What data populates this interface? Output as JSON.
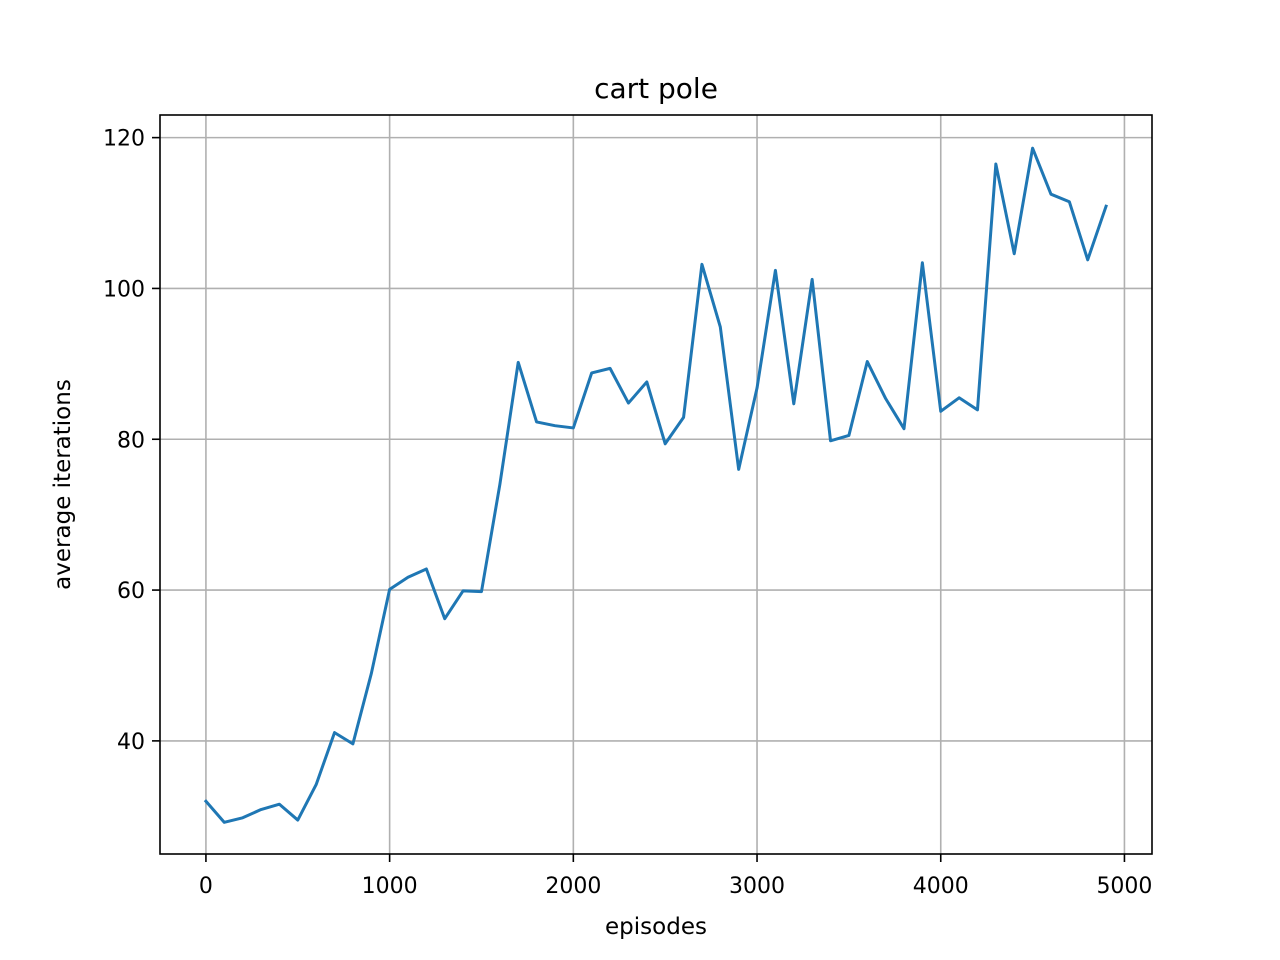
{
  "chart_data": {
    "type": "line",
    "title": "cart pole",
    "xlabel": "episodes",
    "ylabel": "average iterations",
    "xlim": [
      -250,
      5150
    ],
    "ylim": [
      25,
      123
    ],
    "x_ticks": [
      0,
      1000,
      2000,
      3000,
      4000,
      5000
    ],
    "y_ticks": [
      40,
      60,
      80,
      100,
      120
    ],
    "grid": true,
    "series": [
      {
        "color": "#1f77b4",
        "x": [
          0,
          100,
          200,
          300,
          400,
          500,
          600,
          700,
          800,
          900,
          1000,
          1100,
          1200,
          1300,
          1400,
          1500,
          1600,
          1700,
          1800,
          1900,
          2000,
          2100,
          2200,
          2300,
          2400,
          2500,
          2600,
          2700,
          2800,
          2900,
          3000,
          3100,
          3200,
          3300,
          3400,
          3500,
          3600,
          3700,
          3800,
          3900,
          4000,
          4100,
          4200,
          4300,
          4400,
          4500,
          4600,
          4700,
          4800,
          4900
        ],
        "y": [
          32.0,
          29.2,
          29.8,
          30.9,
          31.6,
          29.5,
          34.2,
          41.1,
          39.6,
          48.9,
          60.1,
          61.7,
          62.8,
          56.2,
          59.9,
          59.8,
          74.0,
          90.2,
          82.3,
          81.8,
          81.5,
          88.8,
          89.4,
          84.8,
          87.6,
          79.4,
          82.9,
          103.2,
          94.9,
          76.0,
          86.8,
          102.4,
          84.7,
          101.2,
          79.8,
          80.5,
          90.3,
          85.4,
          81.4,
          103.4,
          83.7,
          85.5,
          83.9,
          116.5,
          104.6,
          118.6,
          112.5,
          111.5,
          103.8,
          110.9
        ]
      }
    ]
  }
}
